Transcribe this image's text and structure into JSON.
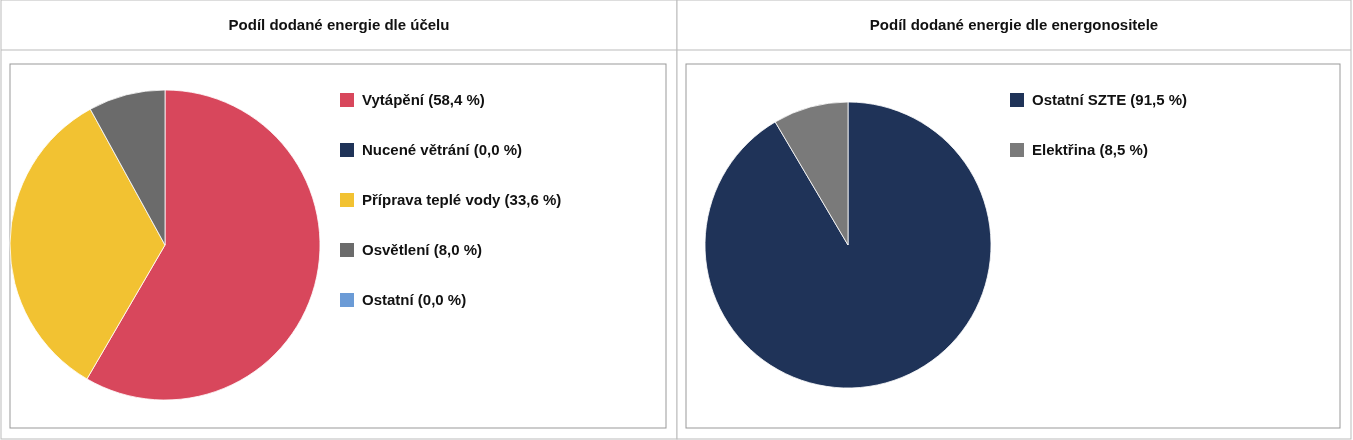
{
  "chart_data": [
    {
      "type": "pie",
      "title": "Podíl dodané energie dle účelu",
      "categories": [
        "Vytápění (58,4 %)",
        "Nucené větrání (0,0 %)",
        "Příprava teplé vody (33,6 %)",
        "Osvětlení (8,0 %)",
        "Ostatní (0,0 %)"
      ],
      "values": [
        58.4,
        0.0,
        33.6,
        8.0,
        0.0
      ],
      "colors": [
        "#d8475c",
        "#1f3358",
        "#f2c232",
        "#6b6b6b",
        "#6b9bd6"
      ],
      "legend": "right"
    },
    {
      "type": "pie",
      "title": "Podíl dodané energie dle energonositele",
      "categories": [
        "Ostatní SZTE (91,5 %)",
        "Elektřina (8,5 %)"
      ],
      "values": [
        91.5,
        8.5
      ],
      "colors": [
        "#1f3358",
        "#7a7a7a"
      ],
      "legend": "right"
    }
  ]
}
